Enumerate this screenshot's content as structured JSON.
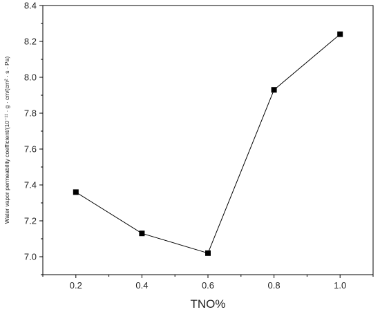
{
  "chart_data": {
    "type": "line",
    "title": "",
    "xlabel": "TNO%",
    "ylabel": "Water vapor permeability coefficient/(10⁻¹¹ · g · cm/(cm² · s · Pa)",
    "x": [
      0.2,
      0.4,
      0.6,
      0.8,
      1.0
    ],
    "series": [
      {
        "values": [
          7.36,
          7.13,
          7.02,
          7.93,
          8.24
        ]
      }
    ],
    "xlim": [
      0.1,
      1.1
    ],
    "ylim": [
      6.9,
      8.4
    ],
    "x_ticks": [
      "0.2",
      "0.4",
      "0.6",
      "0.8",
      "1.0"
    ],
    "y_ticks": [
      "7.0",
      "7.2",
      "7.4",
      "7.6",
      "7.8",
      "8.0",
      "8.2",
      "8.4"
    ],
    "grid": false,
    "legend": "none",
    "line_color": "#000000",
    "marker": "square"
  }
}
